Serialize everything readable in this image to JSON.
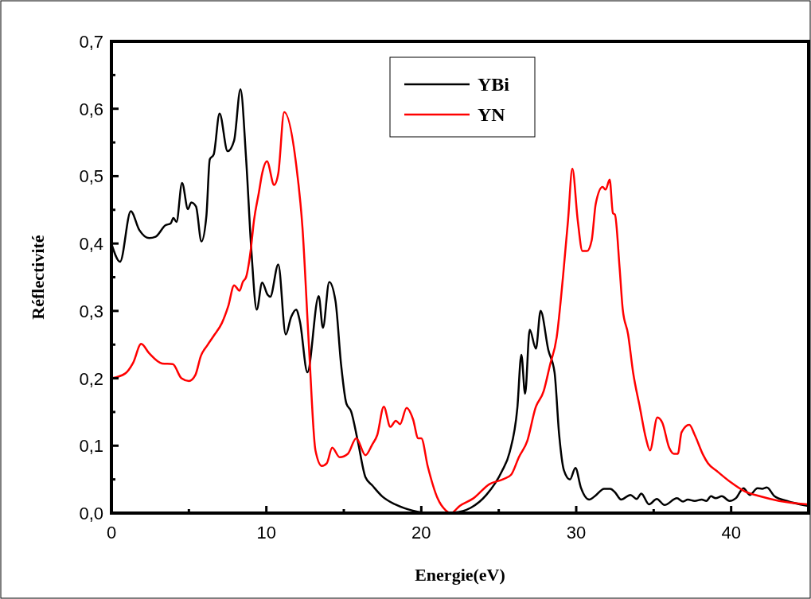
{
  "chart_data": {
    "type": "line",
    "xlabel": "Energie(eV)",
    "ylabel": "Réflectivité",
    "xlim": [
      0,
      45
    ],
    "ylim": [
      0,
      0.7
    ],
    "xticks": [
      0,
      {
        "value": 5,
        "label": null
      },
      10,
      {
        "value": 15,
        "label": null
      },
      20,
      {
        "value": 25,
        "label": null
      },
      30,
      {
        "value": 35,
        "label": null
      },
      40,
      {
        "value": 45,
        "label": null
      }
    ],
    "yticks": [
      {
        "value": 0,
        "label": "0,0"
      },
      {
        "value": 0.05,
        "label": null
      },
      {
        "value": 0.1,
        "label": "0,1"
      },
      {
        "value": 0.15,
        "label": null
      },
      {
        "value": 0.2,
        "label": "0,2"
      },
      {
        "value": 0.25,
        "label": null
      },
      {
        "value": 0.3,
        "label": "0,3"
      },
      {
        "value": 0.35,
        "label": null
      },
      {
        "value": 0.4,
        "label": "0,4"
      },
      {
        "value": 0.45,
        "label": null
      },
      {
        "value": 0.5,
        "label": "0,5"
      },
      {
        "value": 0.55,
        "label": null
      },
      {
        "value": 0.6,
        "label": "0,6"
      },
      {
        "value": 0.65,
        "label": null
      },
      {
        "value": 0.7,
        "label": "0,7"
      }
    ],
    "grid": false,
    "legend": "top",
    "line_style": "solid",
    "series": [
      {
        "name": "YBi",
        "color": "#000000",
        "x": [
          0,
          0.56,
          1.25,
          1.8,
          2.44,
          2.85,
          3.48,
          3.83,
          4.0,
          4.2,
          4.56,
          4.94,
          5.15,
          5.46,
          5.81,
          6.13,
          6.35,
          6.6,
          6.98,
          7.5,
          7.92,
          8.33,
          8.69,
          9.04,
          9.38,
          9.73,
          10.08,
          10.25,
          10.77,
          11.25,
          11.6,
          11.92,
          12.17,
          12.65,
          13.38,
          13.65,
          14.06,
          14.46,
          14.83,
          15.16,
          15.47,
          15.9,
          16.4,
          16.84,
          17.47,
          18.3,
          19.4,
          20.6,
          22.1,
          23.2,
          24.2,
          25.2,
          25.7,
          26.2,
          26.46,
          26.7,
          27.0,
          27.4,
          27.7,
          28.2,
          28.6,
          28.9,
          29.2,
          29.6,
          29.95,
          30.3,
          30.84,
          31.2,
          31.8,
          32.2,
          32.5,
          32.9,
          33.5,
          33.9,
          34.2,
          34.7,
          35.2,
          35.7,
          36.5,
          36.9,
          37.2,
          37.65,
          38.1,
          38.4,
          38.7,
          39.0,
          39.4,
          39.9,
          40.3,
          40.8,
          41.2,
          41.7,
          42.0,
          42.3,
          42.8,
          43.6,
          44.9
        ],
        "values": [
          0.4,
          0.373,
          0.448,
          0.42,
          0.408,
          0.41,
          0.427,
          0.43,
          0.438,
          0.432,
          0.49,
          0.451,
          0.461,
          0.455,
          0.403,
          0.441,
          0.525,
          0.532,
          0.593,
          0.537,
          0.553,
          0.629,
          0.527,
          0.387,
          0.302,
          0.342,
          0.324,
          0.321,
          0.369,
          0.265,
          0.291,
          0.302,
          0.284,
          0.209,
          0.322,
          0.275,
          0.343,
          0.315,
          0.219,
          0.163,
          0.151,
          0.107,
          0.053,
          0.041,
          0.025,
          0.013,
          0.004,
          0,
          0.001,
          0.008,
          0.027,
          0.062,
          0.09,
          0.156,
          0.235,
          0.177,
          0.272,
          0.244,
          0.3,
          0.242,
          0.209,
          0.116,
          0.064,
          0.05,
          0.067,
          0.038,
          0.02,
          0.025,
          0.036,
          0.036,
          0.031,
          0.02,
          0.027,
          0.021,
          0.029,
          0.013,
          0.021,
          0.012,
          0.022,
          0.017,
          0.02,
          0.018,
          0.02,
          0.018,
          0.025,
          0.022,
          0.025,
          0.018,
          0.022,
          0.037,
          0.027,
          0.037,
          0.036,
          0.038,
          0.025,
          0.018,
          0.011
        ]
      },
      {
        "name": "YN",
        "color": "#ff0000",
        "x": [
          0,
          0.88,
          1.4,
          1.92,
          2.44,
          3.27,
          3.96,
          4.52,
          5.0,
          5.42,
          5.77,
          6.19,
          6.6,
          7.13,
          7.54,
          7.92,
          8.27,
          8.48,
          8.69,
          9.0,
          9.2,
          9.52,
          9.73,
          10.04,
          10.5,
          10.77,
          11.15,
          11.92,
          12.33,
          12.75,
          13.17,
          13.58,
          13.9,
          14.25,
          14.73,
          15.26,
          15.8,
          16.4,
          16.84,
          17.16,
          17.58,
          18.0,
          18.36,
          18.63,
          19.05,
          19.47,
          19.8,
          20.0,
          20.42,
          21.05,
          21.58,
          21.9,
          22.5,
          23.37,
          24.4,
          25.26,
          25.8,
          26.3,
          26.84,
          27.37,
          27.9,
          28.3,
          28.74,
          29.16,
          29.47,
          29.75,
          30.1,
          30.4,
          30.7,
          31.0,
          31.26,
          31.7,
          31.9,
          32.16,
          32.37,
          32.5,
          32.8,
          33.0,
          33.35,
          33.67,
          34.1,
          34.5,
          34.76,
          35.24,
          35.56,
          36.0,
          36.3,
          36.56,
          36.8,
          37.3,
          37.65,
          38.2,
          38.5,
          39.1,
          39.96,
          40.9,
          41.85,
          43.1,
          44.9
        ],
        "values": [
          0.2,
          0.207,
          0.223,
          0.251,
          0.237,
          0.222,
          0.221,
          0.2,
          0.196,
          0.205,
          0.233,
          0.249,
          0.263,
          0.282,
          0.307,
          0.338,
          0.33,
          0.343,
          0.35,
          0.392,
          0.434,
          0.476,
          0.504,
          0.522,
          0.487,
          0.504,
          0.595,
          0.518,
          0.424,
          0.247,
          0.093,
          0.07,
          0.074,
          0.097,
          0.083,
          0.088,
          0.111,
          0.086,
          0.102,
          0.116,
          0.158,
          0.128,
          0.137,
          0.132,
          0.156,
          0.139,
          0.111,
          0.111,
          0.069,
          0.022,
          0.004,
          0,
          0.011,
          0.022,
          0.043,
          0.05,
          0.057,
          0.083,
          0.107,
          0.156,
          0.181,
          0.219,
          0.261,
          0.354,
          0.434,
          0.511,
          0.434,
          0.389,
          0.389,
          0.405,
          0.459,
          0.484,
          0.48,
          0.495,
          0.445,
          0.443,
          0.364,
          0.303,
          0.265,
          0.209,
          0.158,
          0.111,
          0.093,
          0.142,
          0.134,
          0.097,
          0.088,
          0.088,
          0.12,
          0.131,
          0.116,
          0.086,
          0.074,
          0.062,
          0.046,
          0.032,
          0.025,
          0.018,
          0.013
        ]
      }
    ]
  }
}
